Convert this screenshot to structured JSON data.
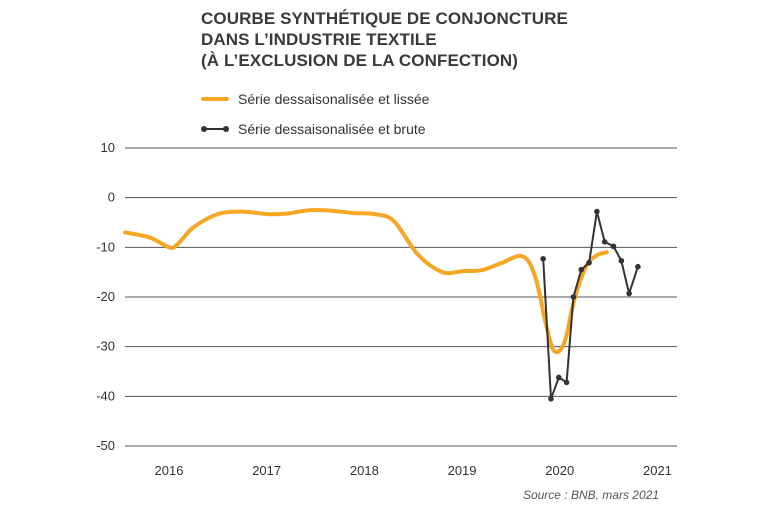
{
  "chart_data": {
    "type": "line",
    "title": [
      "COURBE SYNTHÉTIQUE DE CONJONCTURE",
      "DANS L’INDUSTRIE TEXTILE",
      "(À L’EXCLUSION DE LA CONFECTION)"
    ],
    "xlabel": "",
    "ylabel": "",
    "ylim": [
      -50,
      10
    ],
    "xlim": [
      2015.55,
      2021.2
    ],
    "y_ticks": [
      10,
      0,
      -10,
      -20,
      -30,
      -40,
      -50
    ],
    "x_ticks": [
      2016,
      2017,
      2018,
      2019,
      2020,
      2021
    ],
    "grid": "horizontal",
    "legend_position": "top-left",
    "colors": {
      "smoothed": "#F5A623",
      "raw": "#333333",
      "grid": "#555555"
    },
    "series": [
      {
        "name": "Série dessaisonalisée et lissée",
        "style": "smooth",
        "color": "#F5A623",
        "x": [
          2015.55,
          2015.8,
          2016.0,
          2016.08,
          2016.25,
          2016.5,
          2016.75,
          2017.0,
          2017.2,
          2017.45,
          2017.65,
          2017.9,
          2018.1,
          2018.3,
          2018.55,
          2018.8,
          2019.0,
          2019.2,
          2019.4,
          2019.62,
          2019.75,
          2019.87,
          2019.95,
          2020.05,
          2020.15,
          2020.27,
          2020.38,
          2020.48
        ],
        "y": [
          -7.0,
          -8.0,
          -10.0,
          -9.5,
          -6.0,
          -3.3,
          -2.8,
          -3.3,
          -3.2,
          -2.5,
          -2.6,
          -3.1,
          -3.3,
          -4.7,
          -11.5,
          -15.0,
          -14.8,
          -14.6,
          -13.2,
          -11.8,
          -16.0,
          -26.5,
          -31.0,
          -29.0,
          -20.5,
          -13.8,
          -11.6,
          -11.0
        ]
      },
      {
        "name": "Série dessaisonalisée et brute",
        "style": "markers",
        "color": "#333333",
        "x": [
          2019.83,
          2019.91,
          2019.99,
          2020.07,
          2020.14,
          2020.22,
          2020.3,
          2020.38,
          2020.46,
          2020.55,
          2020.63,
          2020.71,
          2020.8
        ],
        "y": [
          -12.3,
          -40.5,
          -36.2,
          -37.2,
          -20.0,
          -14.5,
          -13.1,
          -2.8,
          -8.9,
          -9.8,
          -12.7,
          -19.3,
          -13.9
        ]
      }
    ],
    "source": "Source : BNB, mars 2021"
  }
}
